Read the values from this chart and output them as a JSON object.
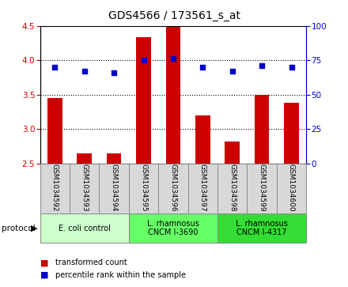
{
  "title": "GDS4566 / 173561_s_at",
  "samples": [
    "GSM1034592",
    "GSM1034593",
    "GSM1034594",
    "GSM1034595",
    "GSM1034596",
    "GSM1034597",
    "GSM1034598",
    "GSM1034599",
    "GSM1034600"
  ],
  "transformed_count": [
    3.45,
    2.65,
    2.65,
    4.33,
    4.5,
    3.2,
    2.82,
    3.5,
    3.38
  ],
  "percentile_rank": [
    70,
    67,
    66,
    75,
    76,
    70,
    67,
    71,
    70
  ],
  "ylim_left": [
    2.5,
    4.5
  ],
  "ylim_right": [
    0,
    100
  ],
  "yticks_left": [
    2.5,
    3.0,
    3.5,
    4.0,
    4.5
  ],
  "yticks_right": [
    0,
    25,
    50,
    75,
    100
  ],
  "bar_color": "#cc0000",
  "dot_color": "#0000cc",
  "protocol_groups": [
    {
      "label": "E. coli control",
      "start": 0,
      "end": 3,
      "color": "#ccffcc"
    },
    {
      "label": "L. rhamnosus\nCNCM I-3690",
      "start": 3,
      "end": 6,
      "color": "#66ff66"
    },
    {
      "label": "L. rhamnosus\nCNCM I-4317",
      "start": 6,
      "end": 9,
      "color": "#33dd33"
    }
  ],
  "legend_items": [
    {
      "label": "transformed count",
      "color": "#cc0000"
    },
    {
      "label": "percentile rank within the sample",
      "color": "#0000cc"
    }
  ],
  "grid_color": "black",
  "bar_width": 0.5,
  "title_fontsize": 10
}
